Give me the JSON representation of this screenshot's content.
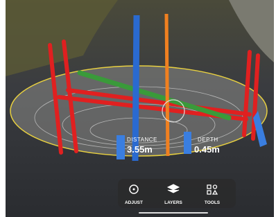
{
  "measurements": {
    "distance": {
      "label": "DISTANCE",
      "value": "3.55m"
    },
    "depth": {
      "label": "DEPTH",
      "value": "0.45m"
    }
  },
  "toolbar": {
    "items": [
      {
        "label": "ADJUST"
      },
      {
        "label": "LAYERS"
      },
      {
        "label": "TOOLS"
      }
    ]
  }
}
